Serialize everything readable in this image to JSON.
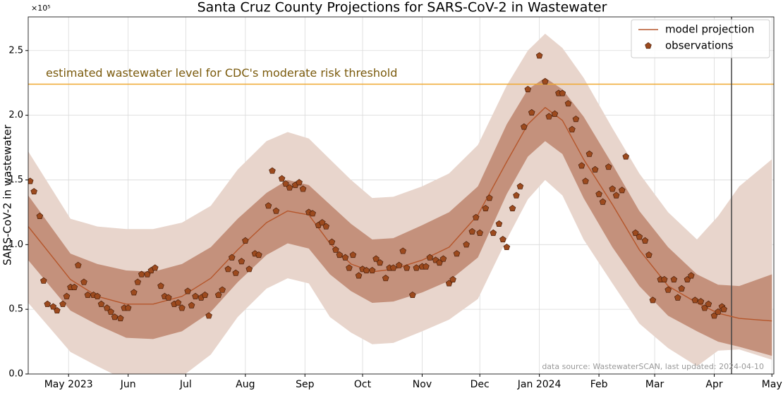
{
  "chart_data": {
    "type": "line",
    "title": "Santa Cruz County Projections for SARS-CoV-2 in Wastewater",
    "ylabel": "SARS-CoV-2 in wastewater",
    "y_offset_label": "×10⁵",
    "source": "data source: WastewaterSCAN, last updated: 2024-04-10",
    "xlim": [
      "2023-04-10",
      "2024-05-02"
    ],
    "ylim": [
      0,
      2.76
    ],
    "yticks": [
      {
        "value": 0,
        "label": "0.0"
      },
      0.5,
      {
        "value": 1,
        "label": "1.0"
      },
      1.5,
      {
        "value": 2,
        "label": "2.0"
      },
      2.5
    ],
    "xticks": [
      {
        "value": "2023-05-01",
        "label": "May 2023"
      },
      {
        "value": "2023-06-01",
        "label": "Jun"
      },
      {
        "value": "2023-07-01",
        "label": "Jul"
      },
      {
        "value": "2023-08-01",
        "label": "Aug"
      },
      {
        "value": "2023-09-01",
        "label": "Sep"
      },
      {
        "value": "2023-10-01",
        "label": "Oct"
      },
      {
        "value": "2023-11-01",
        "label": "Nov"
      },
      {
        "value": "2023-12-01",
        "label": "Dec"
      },
      {
        "value": "2024-01-01",
        "label": "Jan 2024"
      },
      {
        "value": "2024-02-01",
        "label": "Feb"
      },
      {
        "value": "2024-03-01",
        "label": "Mar"
      },
      {
        "value": "2024-04-01",
        "label": "Apr"
      },
      {
        "value": "2024-05-01",
        "label": "May"
      }
    ],
    "grid": true,
    "legend": "upper right",
    "x": [
      "2023-04-10",
      "2023-05-02",
      "2023-05-16",
      "2023-05-31",
      "2023-06-14",
      "2023-06-29",
      "2023-07-14",
      "2023-07-28",
      "2023-08-12",
      "2023-08-23",
      "2023-09-03",
      "2023-09-14",
      "2023-09-25",
      "2023-10-06",
      "2023-10-17",
      "2023-11-01",
      "2023-11-15",
      "2023-11-30",
      "2023-12-15",
      "2023-12-26",
      "2024-01-04",
      "2024-01-13",
      "2024-01-24",
      "2024-02-08",
      "2024-02-22",
      "2024-03-08",
      "2024-03-23",
      "2024-04-03",
      "2024-04-14",
      "2024-05-01"
    ],
    "bands": [
      {
        "color": "#e8d5cc",
        "upper": [
          1.72,
          1.2,
          1.14,
          1.12,
          1.12,
          1.17,
          1.3,
          1.58,
          1.8,
          1.87,
          1.82,
          1.66,
          1.5,
          1.36,
          1.37,
          1.45,
          1.55,
          1.77,
          2.23,
          2.5,
          2.63,
          2.52,
          2.29,
          1.9,
          1.55,
          1.25,
          1.04,
          1.22,
          1.45,
          1.66
        ],
        "lower": [
          0.55,
          0.17,
          0.06,
          -0.05,
          -0.06,
          -0.02,
          0.15,
          0.44,
          0.66,
          0.74,
          0.7,
          0.44,
          0.32,
          0.23,
          0.24,
          0.33,
          0.42,
          0.58,
          1.04,
          1.35,
          1.5,
          1.38,
          1.04,
          0.7,
          0.39,
          0.2,
          0.06,
          0.18,
          0.19,
          0.11
        ]
      },
      {
        "color": "#c4917c",
        "upper": [
          1.38,
          0.93,
          0.85,
          0.8,
          0.79,
          0.85,
          0.98,
          1.2,
          1.4,
          1.5,
          1.46,
          1.31,
          1.16,
          1.04,
          1.05,
          1.15,
          1.25,
          1.45,
          1.93,
          2.2,
          2.29,
          2.2,
          1.99,
          1.62,
          1.26,
          0.98,
          0.77,
          0.69,
          0.68,
          0.77
        ],
        "lower": [
          0.88,
          0.49,
          0.38,
          0.28,
          0.27,
          0.33,
          0.48,
          0.71,
          0.92,
          1.01,
          0.97,
          0.77,
          0.64,
          0.55,
          0.56,
          0.63,
          0.72,
          0.9,
          1.39,
          1.68,
          1.8,
          1.7,
          1.36,
          0.98,
          0.68,
          0.45,
          0.33,
          0.25,
          0.21,
          0.14
        ]
      }
    ],
    "series": [
      {
        "name": "model projection",
        "color": "#b5562b",
        "values": [
          1.14,
          0.73,
          0.6,
          0.54,
          0.54,
          0.6,
          0.74,
          0.96,
          1.17,
          1.26,
          1.23,
          1.01,
          0.85,
          0.79,
          0.81,
          0.88,
          0.98,
          1.23,
          1.64,
          1.93,
          2.06,
          1.96,
          1.66,
          1.31,
          0.96,
          0.68,
          0.55,
          0.47,
          0.43,
          0.41
        ]
      },
      {
        "name": "observations",
        "color": "#9c4a1e",
        "x": [
          "2023-04-11",
          "2023-04-13",
          "2023-04-16",
          "2023-04-18",
          "2023-04-20",
          "2023-04-23",
          "2023-04-25",
          "2023-04-28",
          "2023-04-30",
          "2023-05-02",
          "2023-05-04",
          "2023-05-06",
          "2023-05-09",
          "2023-05-11",
          "2023-05-14",
          "2023-05-16",
          "2023-05-18",
          "2023-05-21",
          "2023-05-23",
          "2023-05-25",
          "2023-05-28",
          "2023-05-30",
          "2023-06-01",
          "2023-06-04",
          "2023-06-06",
          "2023-06-08",
          "2023-06-11",
          "2023-06-13",
          "2023-06-15",
          "2023-06-18",
          "2023-06-20",
          "2023-06-22",
          "2023-06-25",
          "2023-06-27",
          "2023-06-29",
          "2023-07-02",
          "2023-07-04",
          "2023-07-06",
          "2023-07-09",
          "2023-07-11",
          "2023-07-13",
          "2023-07-18",
          "2023-07-20",
          "2023-07-23",
          "2023-07-25",
          "2023-07-27",
          "2023-07-30",
          "2023-08-01",
          "2023-08-03",
          "2023-08-06",
          "2023-08-08",
          "2023-08-13",
          "2023-08-15",
          "2023-08-17",
          "2023-08-20",
          "2023-08-22",
          "2023-08-24",
          "2023-08-27",
          "2023-08-29",
          "2023-08-31",
          "2023-09-03",
          "2023-09-05",
          "2023-09-08",
          "2023-09-10",
          "2023-09-12",
          "2023-09-15",
          "2023-09-17",
          "2023-09-19",
          "2023-09-22",
          "2023-09-24",
          "2023-09-26",
          "2023-09-29",
          "2023-10-01",
          "2023-10-03",
          "2023-10-06",
          "2023-10-08",
          "2023-10-10",
          "2023-10-13",
          "2023-10-15",
          "2023-10-17",
          "2023-10-20",
          "2023-10-22",
          "2023-10-24",
          "2023-10-27",
          "2023-10-29",
          "2023-11-01",
          "2023-11-03",
          "2023-11-05",
          "2023-11-08",
          "2023-11-10",
          "2023-11-12",
          "2023-11-15",
          "2023-11-17",
          "2023-11-19",
          "2023-11-24",
          "2023-11-27",
          "2023-11-29",
          "2023-12-01",
          "2023-12-04",
          "2023-12-06",
          "2023-12-08",
          "2023-12-11",
          "2023-12-13",
          "2023-12-15",
          "2023-12-18",
          "2023-12-20",
          "2023-12-22",
          "2023-12-24",
          "2023-12-26",
          "2023-12-28",
          "2024-01-01",
          "2024-01-04",
          "2024-01-06",
          "2024-01-09",
          "2024-01-11",
          "2024-01-13",
          "2024-01-16",
          "2024-01-18",
          "2024-01-20",
          "2024-01-23",
          "2024-01-25",
          "2024-01-27",
          "2024-01-30",
          "2024-02-01",
          "2024-02-03",
          "2024-02-06",
          "2024-02-08",
          "2024-02-10",
          "2024-02-13",
          "2024-02-15",
          "2024-02-20",
          "2024-02-22",
          "2024-02-25",
          "2024-02-27",
          "2024-02-29",
          "2024-03-04",
          "2024-03-06",
          "2024-03-08",
          "2024-03-11",
          "2024-03-13",
          "2024-03-15",
          "2024-03-18",
          "2024-03-20",
          "2024-03-22",
          "2024-03-25",
          "2024-03-27",
          "2024-03-29",
          "2024-04-01",
          "2024-04-03",
          "2024-04-05",
          "2024-04-06"
        ],
        "values": [
          1.49,
          1.41,
          1.22,
          0.72,
          0.54,
          0.52,
          0.49,
          0.54,
          0.6,
          0.67,
          0.67,
          0.84,
          0.71,
          0.61,
          0.61,
          0.6,
          0.54,
          0.51,
          0.48,
          0.44,
          0.43,
          0.51,
          0.51,
          0.63,
          0.71,
          0.77,
          0.77,
          0.8,
          0.82,
          0.68,
          0.6,
          0.59,
          0.54,
          0.55,
          0.51,
          0.64,
          0.53,
          0.6,
          0.59,
          0.61,
          0.45,
          0.61,
          0.65,
          0.81,
          0.9,
          0.78,
          0.87,
          1.03,
          0.81,
          0.93,
          0.92,
          1.3,
          1.57,
          1.26,
          1.51,
          1.47,
          1.44,
          1.46,
          1.48,
          1.43,
          1.25,
          1.24,
          1.15,
          1.17,
          1.14,
          1.02,
          0.96,
          0.92,
          0.9,
          0.82,
          0.92,
          0.76,
          0.81,
          0.8,
          0.8,
          0.89,
          0.86,
          0.74,
          0.82,
          0.82,
          0.84,
          0.95,
          0.82,
          0.61,
          0.82,
          0.83,
          0.83,
          0.9,
          0.88,
          0.86,
          0.89,
          0.7,
          0.73,
          0.93,
          1.0,
          1.1,
          1.21,
          1.09,
          1.28,
          1.36,
          1.09,
          1.16,
          1.04,
          0.98,
          1.28,
          1.38,
          1.45,
          1.91,
          2.2,
          2.02,
          2.46,
          2.26,
          1.99,
          2.01,
          2.17,
          2.17,
          2.09,
          1.89,
          1.97,
          1.61,
          1.49,
          1.7,
          1.58,
          1.39,
          1.33,
          1.6,
          1.43,
          1.38,
          1.42,
          1.68,
          1.09,
          1.06,
          1.03,
          0.92,
          0.57,
          0.73,
          0.73,
          0.65,
          0.73,
          0.59,
          0.66,
          0.73,
          0.76,
          0.57,
          0.56,
          0.51,
          0.54,
          0.45,
          0.48,
          0.52,
          0.5
        ]
      }
    ],
    "threshold": {
      "value": 2.24,
      "label": "estimated wastewater level for CDC's moderate risk threshold",
      "color": "#f0a830",
      "label_color": "#7a5a0c"
    },
    "vline": {
      "x": "2024-04-10",
      "color": "#444444"
    }
  }
}
